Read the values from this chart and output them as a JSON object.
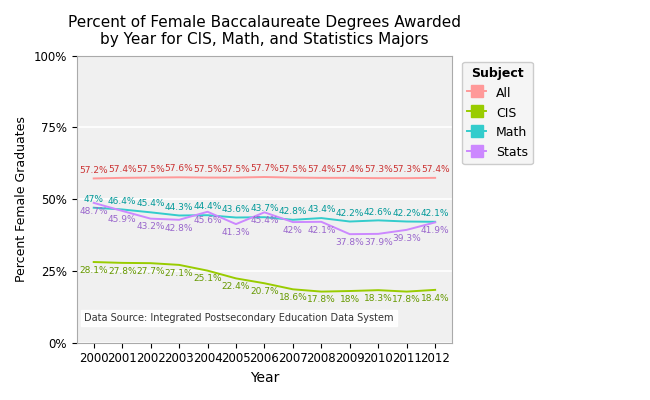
{
  "title": "Percent of Female Baccalaureate Degrees Awarded\nby Year for CIS, Math, and Statistics Majors",
  "xlabel": "Year",
  "ylabel": "Percent Female Graduates",
  "years": [
    2000,
    2001,
    2002,
    2003,
    2004,
    2005,
    2006,
    2007,
    2008,
    2009,
    2010,
    2011,
    2012
  ],
  "series": {
    "All": [
      57.2,
      57.4,
      57.5,
      57.6,
      57.5,
      57.5,
      57.7,
      57.5,
      57.4,
      57.4,
      57.3,
      57.3,
      57.4
    ],
    "CIS": [
      28.1,
      27.8,
      27.7,
      27.1,
      25.1,
      22.4,
      20.7,
      18.6,
      17.8,
      18.0,
      18.3,
      17.8,
      18.4
    ],
    "Math": [
      47.0,
      46.4,
      45.4,
      44.3,
      44.4,
      43.6,
      43.7,
      42.8,
      43.4,
      42.2,
      42.6,
      42.2,
      42.1
    ],
    "Stats": [
      48.7,
      45.9,
      43.2,
      42.8,
      45.6,
      41.3,
      45.4,
      42.0,
      42.1,
      37.8,
      37.9,
      39.3,
      41.9
    ]
  },
  "line_colors": {
    "All": "#FF9999",
    "CIS": "#99CC00",
    "Math": "#33CCCC",
    "Stats": "#CC88FF"
  },
  "label_colors": {
    "All": "#CC3333",
    "CIS": "#669900",
    "Math": "#009999",
    "Stats": "#9966CC"
  },
  "label_offsets": {
    "All": 6,
    "CIS": -6,
    "Math": 6,
    "Stats": -6
  },
  "ylim": [
    0,
    100
  ],
  "yticks": [
    0,
    25,
    50,
    75,
    100
  ],
  "xlim": [
    1999.4,
    2012.6
  ],
  "background_color": "#FFFFFF",
  "plot_bg_color": "#F0F0F0",
  "grid_color": "#FFFFFF",
  "source_text": "Data Source: Integrated Postsecondary Education Data System",
  "label_fontsize": 6.5,
  "line_width": 1.4,
  "title_fontsize": 11,
  "axis_label_fontsize": 10,
  "tick_fontsize": 8.5
}
